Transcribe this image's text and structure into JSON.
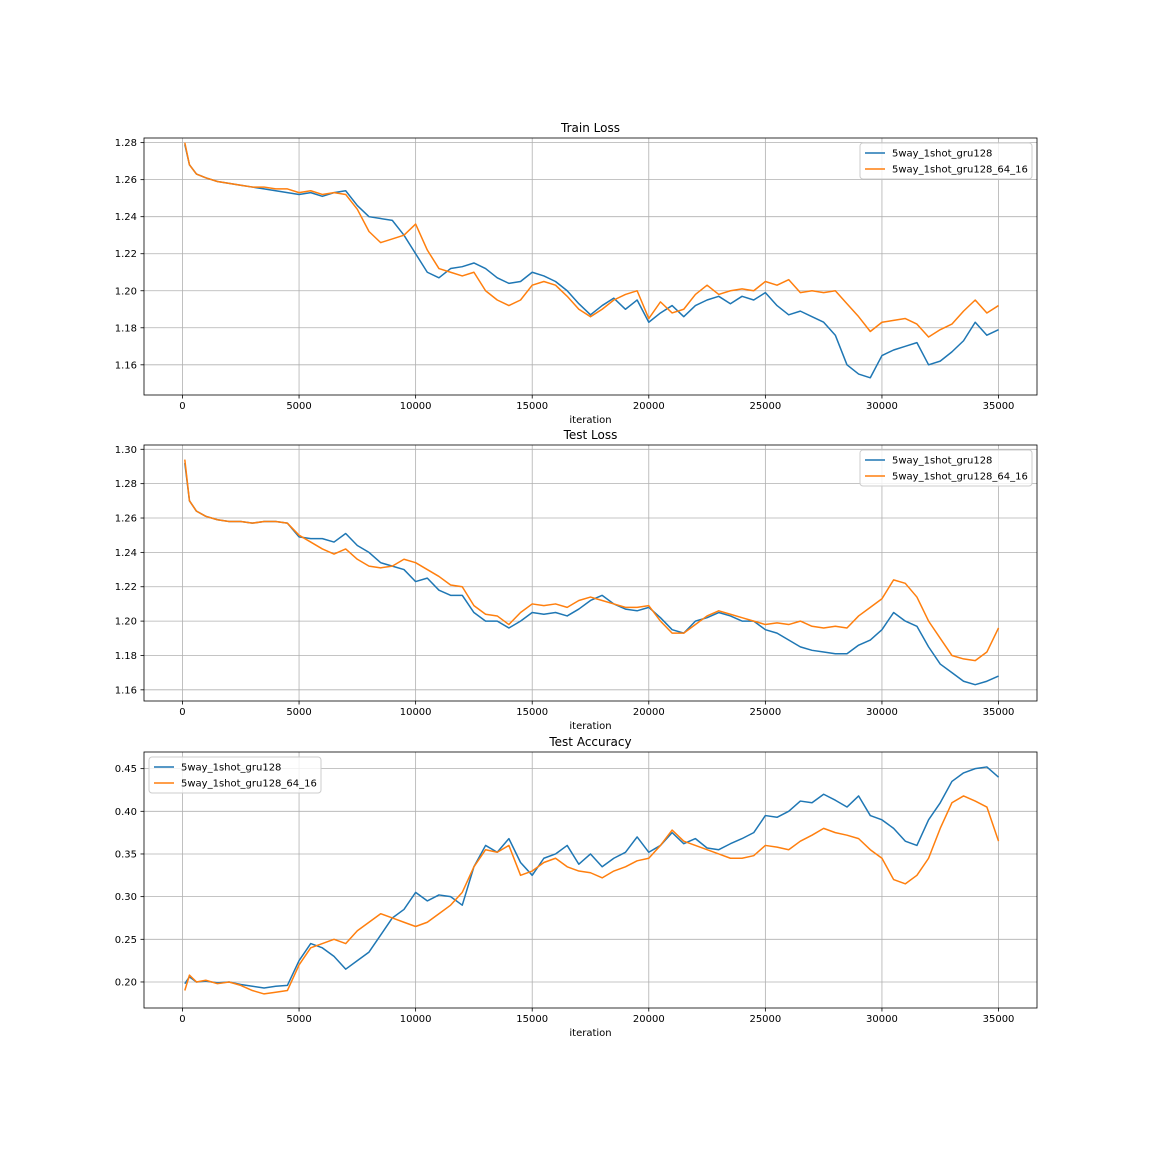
{
  "figure": {
    "background": "#ffffff",
    "series_colors": [
      "#1f77b4",
      "#ff7f0e"
    ]
  },
  "chart_data": [
    {
      "type": "line",
      "title": "Train Loss",
      "xlabel": "iteration",
      "ylabel": "",
      "xlim": [
        -1650,
        36650
      ],
      "ylim": [
        1.1437,
        1.2825
      ],
      "xticks": [
        0,
        5000,
        10000,
        15000,
        20000,
        25000,
        30000,
        35000
      ],
      "yticks": [
        1.16,
        1.18,
        1.2,
        1.22,
        1.24,
        1.26,
        1.28
      ],
      "ytick_labels": [
        "1.16",
        "1.18",
        "1.20",
        "1.22",
        "1.24",
        "1.26",
        "1.28"
      ],
      "grid": true,
      "legend_position": "upper right",
      "series": [
        {
          "name": "5way_1shot_gru128",
          "color": "#1f77b4",
          "x": [
            100,
            300,
            600,
            1000,
            1500,
            2000,
            2500,
            3000,
            3500,
            4000,
            4500,
            5000,
            5500,
            6000,
            6500,
            7000,
            7500,
            8000,
            8500,
            9000,
            9500,
            10000,
            10500,
            11000,
            11500,
            12000,
            12500,
            13000,
            13500,
            14000,
            14500,
            15000,
            15500,
            16000,
            16500,
            17000,
            17500,
            18000,
            18500,
            19000,
            19500,
            20000,
            20500,
            21000,
            21500,
            22000,
            22500,
            23000,
            23500,
            24000,
            24500,
            25000,
            25500,
            26000,
            26500,
            27000,
            27500,
            28000,
            28500,
            29000,
            29500,
            30000,
            30500,
            31000,
            31500,
            32000,
            32500,
            33000,
            33500,
            34000,
            34500,
            35000
          ],
          "y": [
            1.279,
            1.268,
            1.263,
            1.261,
            1.259,
            1.258,
            1.257,
            1.256,
            1.255,
            1.254,
            1.253,
            1.252,
            1.253,
            1.251,
            1.253,
            1.254,
            1.246,
            1.24,
            1.239,
            1.238,
            1.23,
            1.22,
            1.21,
            1.207,
            1.212,
            1.213,
            1.215,
            1.212,
            1.207,
            1.204,
            1.205,
            1.21,
            1.208,
            1.205,
            1.2,
            1.193,
            1.187,
            1.192,
            1.196,
            1.19,
            1.195,
            1.183,
            1.188,
            1.192,
            1.186,
            1.192,
            1.195,
            1.197,
            1.193,
            1.197,
            1.195,
            1.199,
            1.192,
            1.187,
            1.189,
            1.186,
            1.183,
            1.176,
            1.16,
            1.155,
            1.153,
            1.165,
            1.168,
            1.17,
            1.172,
            1.16,
            1.162,
            1.167,
            1.173,
            1.183,
            1.176,
            1.179
          ]
        },
        {
          "name": "5way_1shot_gru128_64_16",
          "color": "#ff7f0e",
          "x": [
            100,
            300,
            600,
            1000,
            1500,
            2000,
            2500,
            3000,
            3500,
            4000,
            4500,
            5000,
            5500,
            6000,
            6500,
            7000,
            7500,
            8000,
            8500,
            9000,
            9500,
            10000,
            10500,
            11000,
            11500,
            12000,
            12500,
            13000,
            13500,
            14000,
            14500,
            15000,
            15500,
            16000,
            16500,
            17000,
            17500,
            18000,
            18500,
            19000,
            19500,
            20000,
            20500,
            21000,
            21500,
            22000,
            22500,
            23000,
            23500,
            24000,
            24500,
            25000,
            25500,
            26000,
            26500,
            27000,
            27500,
            28000,
            28500,
            29000,
            29500,
            30000,
            30500,
            31000,
            31500,
            32000,
            32500,
            33000,
            33500,
            34000,
            34500,
            35000
          ],
          "y": [
            1.28,
            1.268,
            1.263,
            1.261,
            1.259,
            1.258,
            1.257,
            1.256,
            1.256,
            1.255,
            1.255,
            1.253,
            1.254,
            1.252,
            1.253,
            1.252,
            1.244,
            1.232,
            1.226,
            1.228,
            1.23,
            1.236,
            1.222,
            1.212,
            1.21,
            1.208,
            1.21,
            1.2,
            1.195,
            1.192,
            1.195,
            1.203,
            1.205,
            1.203,
            1.197,
            1.19,
            1.186,
            1.19,
            1.195,
            1.198,
            1.2,
            1.185,
            1.194,
            1.188,
            1.19,
            1.198,
            1.203,
            1.198,
            1.2,
            1.201,
            1.2,
            1.205,
            1.203,
            1.206,
            1.199,
            1.2,
            1.199,
            1.2,
            1.193,
            1.186,
            1.178,
            1.183,
            1.184,
            1.185,
            1.182,
            1.175,
            1.179,
            1.182,
            1.189,
            1.195,
            1.188,
            1.192
          ]
        }
      ]
    },
    {
      "type": "line",
      "title": "Test Loss",
      "xlabel": "iteration",
      "ylabel": "",
      "xlim": [
        -1650,
        36650
      ],
      "ylim": [
        1.1535,
        1.3025
      ],
      "xticks": [
        0,
        5000,
        10000,
        15000,
        20000,
        25000,
        30000,
        35000
      ],
      "yticks": [
        1.16,
        1.18,
        1.2,
        1.22,
        1.24,
        1.26,
        1.28,
        1.3
      ],
      "ytick_labels": [
        "1.16",
        "1.18",
        "1.20",
        "1.22",
        "1.24",
        "1.26",
        "1.28",
        "1.30"
      ],
      "grid": true,
      "legend_position": "upper right",
      "series": [
        {
          "name": "5way_1shot_gru128",
          "color": "#1f77b4",
          "x": [
            100,
            300,
            600,
            1000,
            1500,
            2000,
            2500,
            3000,
            3500,
            4000,
            4500,
            5000,
            5500,
            6000,
            6500,
            7000,
            7500,
            8000,
            8500,
            9000,
            9500,
            10000,
            10500,
            11000,
            11500,
            12000,
            12500,
            13000,
            13500,
            14000,
            14500,
            15000,
            15500,
            16000,
            16500,
            17000,
            17500,
            18000,
            18500,
            19000,
            19500,
            20000,
            20500,
            21000,
            21500,
            22000,
            22500,
            23000,
            23500,
            24000,
            24500,
            25000,
            25500,
            26000,
            26500,
            27000,
            27500,
            28000,
            28500,
            29000,
            29500,
            30000,
            30500,
            31000,
            31500,
            32000,
            32500,
            33000,
            33500,
            34000,
            34500,
            35000
          ],
          "y": [
            1.292,
            1.27,
            1.264,
            1.261,
            1.259,
            1.258,
            1.258,
            1.257,
            1.258,
            1.258,
            1.257,
            1.249,
            1.248,
            1.248,
            1.246,
            1.251,
            1.244,
            1.24,
            1.234,
            1.232,
            1.23,
            1.223,
            1.225,
            1.218,
            1.215,
            1.215,
            1.205,
            1.2,
            1.2,
            1.196,
            1.2,
            1.205,
            1.204,
            1.205,
            1.203,
            1.207,
            1.212,
            1.215,
            1.21,
            1.207,
            1.206,
            1.208,
            1.202,
            1.195,
            1.193,
            1.2,
            1.202,
            1.205,
            1.203,
            1.2,
            1.2,
            1.195,
            1.193,
            1.189,
            1.185,
            1.183,
            1.182,
            1.181,
            1.181,
            1.186,
            1.189,
            1.195,
            1.205,
            1.2,
            1.197,
            1.185,
            1.175,
            1.17,
            1.165,
            1.163,
            1.165,
            1.168
          ]
        },
        {
          "name": "5way_1shot_gru128_64_16",
          "color": "#ff7f0e",
          "x": [
            100,
            300,
            600,
            1000,
            1500,
            2000,
            2500,
            3000,
            3500,
            4000,
            4500,
            5000,
            5500,
            6000,
            6500,
            7000,
            7500,
            8000,
            8500,
            9000,
            9500,
            10000,
            10500,
            11000,
            11500,
            12000,
            12500,
            13000,
            13500,
            14000,
            14500,
            15000,
            15500,
            16000,
            16500,
            17000,
            17500,
            18000,
            18500,
            19000,
            19500,
            20000,
            20500,
            21000,
            21500,
            22000,
            22500,
            23000,
            23500,
            24000,
            24500,
            25000,
            25500,
            26000,
            26500,
            27000,
            27500,
            28000,
            28500,
            29000,
            29500,
            30000,
            30500,
            31000,
            31500,
            32000,
            32500,
            33000,
            33500,
            34000,
            34500,
            35000
          ],
          "y": [
            1.294,
            1.27,
            1.264,
            1.261,
            1.259,
            1.258,
            1.258,
            1.257,
            1.258,
            1.258,
            1.257,
            1.25,
            1.246,
            1.242,
            1.239,
            1.242,
            1.236,
            1.232,
            1.231,
            1.232,
            1.236,
            1.234,
            1.23,
            1.226,
            1.221,
            1.22,
            1.209,
            1.204,
            1.203,
            1.198,
            1.205,
            1.21,
            1.209,
            1.21,
            1.208,
            1.212,
            1.214,
            1.212,
            1.21,
            1.208,
            1.208,
            1.209,
            1.2,
            1.193,
            1.193,
            1.198,
            1.203,
            1.206,
            1.204,
            1.202,
            1.2,
            1.198,
            1.199,
            1.198,
            1.2,
            1.197,
            1.196,
            1.197,
            1.196,
            1.203,
            1.208,
            1.213,
            1.224,
            1.222,
            1.214,
            1.2,
            1.19,
            1.18,
            1.178,
            1.177,
            1.182,
            1.196
          ]
        }
      ]
    },
    {
      "type": "line",
      "title": "Test Accuracy",
      "xlabel": "iteration",
      "ylabel": "",
      "xlim": [
        -1650,
        36650
      ],
      "ylim": [
        0.1695,
        0.4695
      ],
      "xticks": [
        0,
        5000,
        10000,
        15000,
        20000,
        25000,
        30000,
        35000
      ],
      "yticks": [
        0.2,
        0.25,
        0.3,
        0.35,
        0.4,
        0.45
      ],
      "ytick_labels": [
        "0.20",
        "0.25",
        "0.30",
        "0.35",
        "0.40",
        "0.45"
      ],
      "grid": true,
      "legend_position": "upper left",
      "series": [
        {
          "name": "5way_1shot_gru128",
          "color": "#1f77b4",
          "x": [
            100,
            300,
            600,
            1000,
            1500,
            2000,
            2500,
            3000,
            3500,
            4000,
            4500,
            5000,
            5500,
            6000,
            6500,
            7000,
            7500,
            8000,
            8500,
            9000,
            9500,
            10000,
            10500,
            11000,
            11500,
            12000,
            12500,
            13000,
            13500,
            14000,
            14500,
            15000,
            15500,
            16000,
            16500,
            17000,
            17500,
            18000,
            18500,
            19000,
            19500,
            20000,
            20500,
            21000,
            21500,
            22000,
            22500,
            23000,
            23500,
            24000,
            24500,
            25000,
            25500,
            26000,
            26500,
            27000,
            27500,
            28000,
            28500,
            29000,
            29500,
            30000,
            30500,
            31000,
            31500,
            32000,
            32500,
            33000,
            33500,
            34000,
            34500,
            35000
          ],
          "y": [
            0.198,
            0.206,
            0.2,
            0.201,
            0.199,
            0.2,
            0.197,
            0.195,
            0.193,
            0.195,
            0.196,
            0.225,
            0.245,
            0.24,
            0.23,
            0.215,
            0.225,
            0.235,
            0.255,
            0.275,
            0.285,
            0.305,
            0.295,
            0.302,
            0.3,
            0.29,
            0.335,
            0.36,
            0.352,
            0.368,
            0.34,
            0.325,
            0.345,
            0.35,
            0.36,
            0.338,
            0.35,
            0.335,
            0.345,
            0.352,
            0.37,
            0.352,
            0.36,
            0.375,
            0.362,
            0.368,
            0.357,
            0.355,
            0.362,
            0.368,
            0.375,
            0.395,
            0.393,
            0.4,
            0.412,
            0.41,
            0.42,
            0.413,
            0.405,
            0.418,
            0.395,
            0.39,
            0.38,
            0.365,
            0.36,
            0.39,
            0.41,
            0.435,
            0.445,
            0.45,
            0.452,
            0.44
          ]
        },
        {
          "name": "5way_1shot_gru128_64_16",
          "color": "#ff7f0e",
          "x": [
            100,
            300,
            600,
            1000,
            1500,
            2000,
            2500,
            3000,
            3500,
            4000,
            4500,
            5000,
            5500,
            6000,
            6500,
            7000,
            7500,
            8000,
            8500,
            9000,
            9500,
            10000,
            10500,
            11000,
            11500,
            12000,
            12500,
            13000,
            13500,
            14000,
            14500,
            15000,
            15500,
            16000,
            16500,
            17000,
            17500,
            18000,
            18500,
            19000,
            19500,
            20000,
            20500,
            21000,
            21500,
            22000,
            22500,
            23000,
            23500,
            24000,
            24500,
            25000,
            25500,
            26000,
            26500,
            27000,
            27500,
            28000,
            28500,
            29000,
            29500,
            30000,
            30500,
            31000,
            31500,
            32000,
            32500,
            33000,
            33500,
            34000,
            34500,
            35000
          ],
          "y": [
            0.19,
            0.208,
            0.2,
            0.202,
            0.198,
            0.2,
            0.196,
            0.19,
            0.186,
            0.188,
            0.19,
            0.22,
            0.24,
            0.245,
            0.25,
            0.245,
            0.26,
            0.27,
            0.28,
            0.275,
            0.27,
            0.265,
            0.27,
            0.28,
            0.29,
            0.305,
            0.335,
            0.355,
            0.352,
            0.36,
            0.325,
            0.33,
            0.34,
            0.345,
            0.335,
            0.33,
            0.328,
            0.322,
            0.33,
            0.335,
            0.342,
            0.345,
            0.36,
            0.378,
            0.365,
            0.36,
            0.355,
            0.35,
            0.345,
            0.345,
            0.348,
            0.36,
            0.358,
            0.355,
            0.365,
            0.372,
            0.38,
            0.375,
            0.372,
            0.368,
            0.355,
            0.345,
            0.32,
            0.315,
            0.325,
            0.345,
            0.38,
            0.41,
            0.418,
            0.412,
            0.405,
            0.365
          ]
        }
      ]
    }
  ]
}
